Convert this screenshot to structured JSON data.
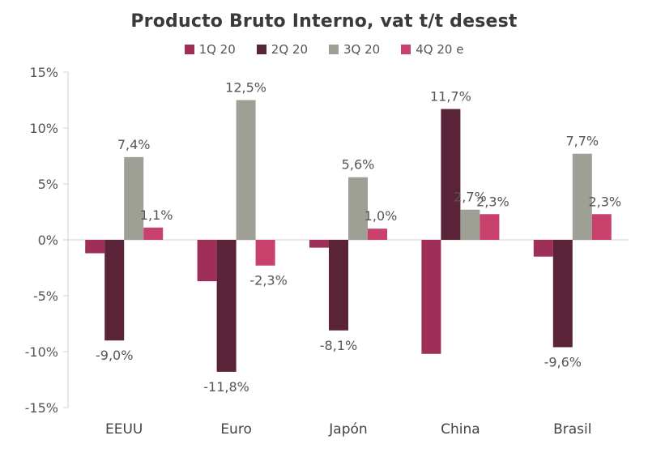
{
  "chart_data": {
    "type": "bar",
    "title": "Producto Bruto Interno, vat t/t desest",
    "categories": [
      "EEUU",
      "Euro",
      "Japón",
      "China",
      "Brasil"
    ],
    "series": [
      {
        "name": "1Q 20",
        "color": "#9e2f58",
        "values": [
          -1.2,
          -3.7,
          -0.7,
          -10.2,
          -1.5
        ],
        "labels": [
          null,
          null,
          null,
          null,
          null
        ]
      },
      {
        "name": "2Q 20",
        "color": "#5a2338",
        "values": [
          -9.0,
          -11.8,
          -8.1,
          11.7,
          -9.6
        ],
        "labels": [
          "-9,0%",
          "-11,8%",
          "-8,1%",
          "11,7%",
          "-9,6%"
        ]
      },
      {
        "name": "3Q 20",
        "color": "#9ea096",
        "values": [
          7.4,
          12.5,
          5.6,
          2.7,
          7.7
        ],
        "labels": [
          "7,4%",
          "12,5%",
          "5,6%",
          "2,7%",
          "7,7%"
        ]
      },
      {
        "name": "4Q 20 e",
        "color": "#c8416c",
        "values": [
          1.1,
          -2.3,
          1.0,
          2.3,
          2.3
        ],
        "labels": [
          "1,1%",
          "-2,3%",
          "1,0%",
          "2,3%",
          "2,3%"
        ]
      }
    ],
    "yticks": [
      15,
      10,
      5,
      0,
      -5,
      -10,
      -15
    ],
    "yticklabels": [
      "15%",
      "10%",
      "5%",
      "0%",
      "-5%",
      "-10%",
      "-15%"
    ],
    "ylim": [
      -15,
      15
    ],
    "xlabel": "",
    "ylabel": "",
    "legend_position": "top-center",
    "grid": false
  }
}
